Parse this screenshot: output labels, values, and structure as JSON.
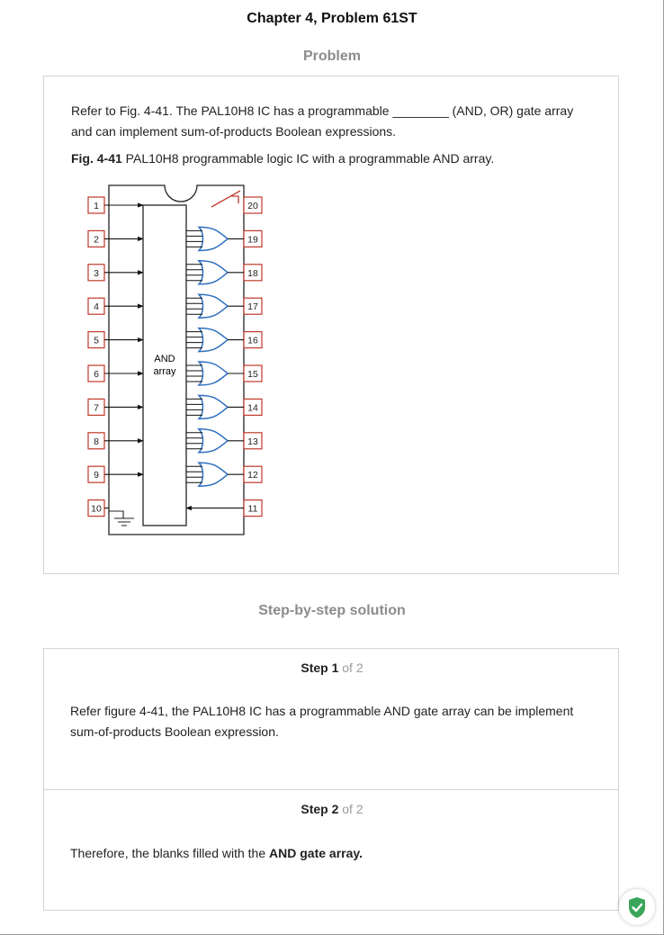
{
  "page_title": "Chapter 4, Problem 61ST",
  "problem_label": "Problem",
  "problem": {
    "text_line1": "Refer to Fig. 4-41. The PAL10H8 IC has a programmable ________ (AND, OR) gate array",
    "text_line2": "and can implement sum-of-products Boolean expressions.",
    "fig_label": "Fig. 4-41",
    "fig_caption": " PAL10H8 programmable logic IC with a programmable AND array."
  },
  "figure": {
    "left_pins": [
      "1",
      "2",
      "3",
      "4",
      "5",
      "6",
      "7",
      "8",
      "9",
      "10"
    ],
    "right_pins": [
      "20",
      "19",
      "18",
      "17",
      "16",
      "15",
      "14",
      "13",
      "12",
      "11"
    ],
    "and_array_label_1": "AND",
    "and_array_label_2": "array"
  },
  "solution_label": "Step-by-step solution",
  "steps": [
    {
      "step_word": "Step 1",
      "step_of": " of 2",
      "text_line1": "Refer figure 4-41, the PAL10H8 IC has a programmable AND gate array can be implement",
      "text_line2": "sum-of-products Boolean expression."
    },
    {
      "step_word": "Step 2",
      "step_of": " of 2",
      "text_prefix": "Therefore, the blanks filled with the ",
      "text_bold": "AND gate array."
    }
  ],
  "badge_icon": "shield-check-icon",
  "colors": {
    "pin_border": "#c0392b",
    "or_gate": "#2e6fbf",
    "badge_green": "#3aa55a"
  }
}
